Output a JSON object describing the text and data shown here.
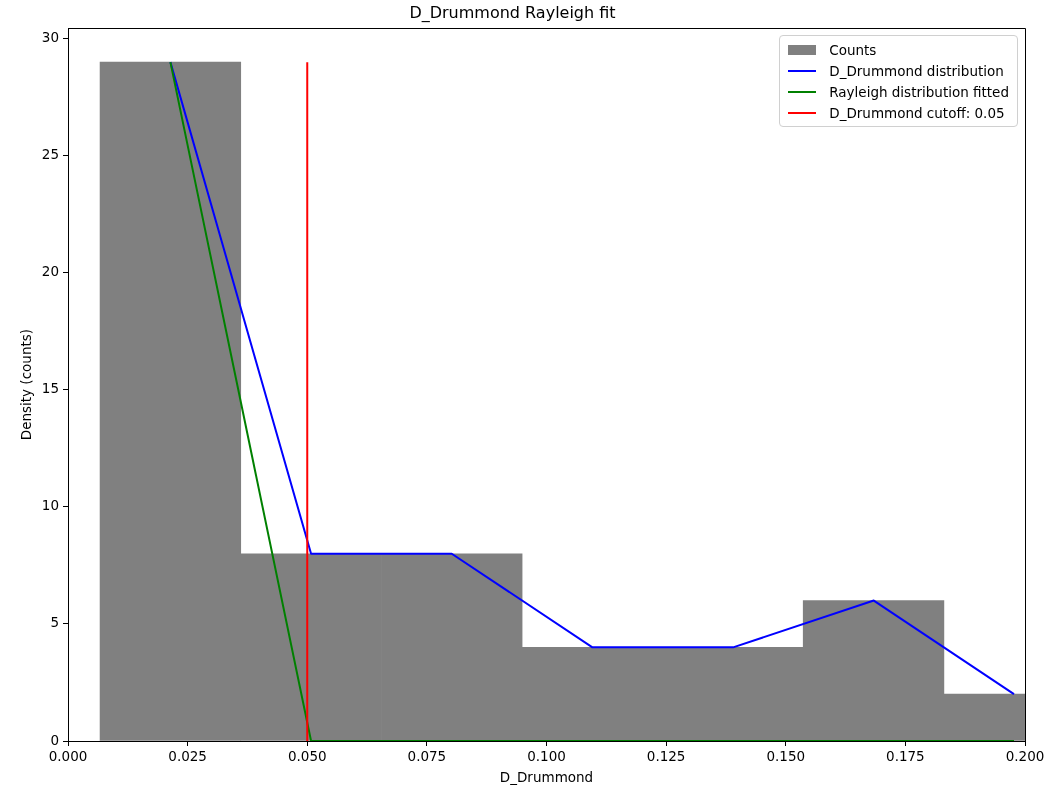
{
  "chart_data": {
    "type": "histogram",
    "title": "D_Drummond Rayleigh fit",
    "xlabel": "D_Drummond",
    "ylabel": "Density (counts)",
    "xlim": [
      0,
      0.2
    ],
    "xticks": [
      {
        "value": 0,
        "label": "0.000"
      },
      {
        "value": 0.025,
        "label": "0.025"
      },
      {
        "value": 0.05,
        "label": "0.050"
      },
      {
        "value": 0.075,
        "label": "0.075"
      },
      {
        "value": 0.1,
        "label": "0.100"
      },
      {
        "value": 0.125,
        "label": "0.125"
      },
      {
        "value": 0.15,
        "label": "0.150"
      },
      {
        "value": 0.175,
        "label": "0.175"
      },
      {
        "value": 0.2,
        "label": "0.200"
      }
    ],
    "ylim": [
      0,
      30.45
    ],
    "yticks": [
      0,
      5,
      10,
      15,
      20,
      25,
      30
    ],
    "grid": false,
    "legend": "top right",
    "marker": "none",
    "line_style": "solid",
    "series": [
      {
        "name": "Counts",
        "color": "#808080",
        "bins": [
          0.0067,
          0.0361,
          0.0655,
          0.0949,
          0.1243,
          0.1537,
          0.183,
          0.2124
        ],
        "values": [
          29,
          8,
          8,
          4,
          4,
          6,
          2
        ]
      },
      {
        "type": "line",
        "name": "D_Drummond distribution",
        "color": "#0000ff",
        "x": [
          0.0214,
          0.0508,
          0.0802,
          0.1096,
          0.139,
          0.1684,
          0.1977
        ],
        "values": [
          29,
          8,
          8,
          4,
          4,
          6,
          2
        ]
      },
      {
        "type": "line",
        "name": "Rayleigh distribution fitted",
        "color": "#008000",
        "x": [
          0.0214,
          0.0508,
          0.0802,
          0.1096,
          0.139,
          0.1684,
          0.1977
        ],
        "values": [
          29,
          0,
          0,
          0,
          0,
          0,
          0
        ]
      },
      {
        "type": "line",
        "name": "D_Drummond cutoff: 0.05",
        "color": "#ff0000",
        "x": [
          0.05,
          0.05
        ],
        "values": [
          0,
          29
        ]
      }
    ]
  }
}
